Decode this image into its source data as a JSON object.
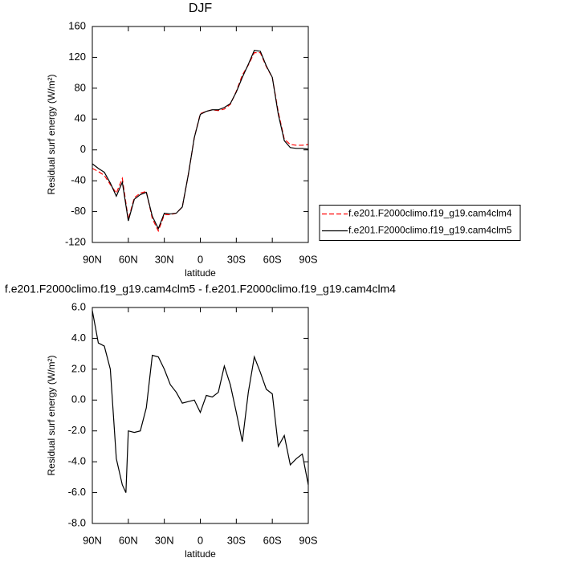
{
  "chart_data": [
    {
      "type": "line",
      "title": "DJF",
      "xlabel": "latitude",
      "ylabel": "Residual surf energy (W/m²)",
      "x": [
        90,
        85,
        80,
        75,
        70,
        65,
        60,
        55,
        50,
        45,
        40,
        35,
        30,
        25,
        20,
        15,
        10,
        5,
        0,
        -5,
        -10,
        -15,
        -20,
        -25,
        -30,
        -35,
        -40,
        -45,
        -50,
        -55,
        -60,
        -65,
        -70,
        -75,
        -80,
        -85,
        -90
      ],
      "series": [
        {
          "name": "f.e201.F2000climo.f19_g19.cam4clm4",
          "color": "#ff0000",
          "linestyle": "dashed",
          "values": [
            -24,
            -28,
            -33,
            -45,
            -56,
            -37,
            -90,
            -62,
            -56,
            -54,
            -89,
            -105,
            -84,
            -84,
            -82,
            -74,
            -32,
            16,
            47,
            50,
            52,
            51,
            53,
            59,
            76,
            97,
            110,
            126,
            126,
            108,
            94,
            49,
            14,
            7,
            6,
            6,
            7
          ]
        },
        {
          "name": "f.e201.F2000climo.f19_g19.cam4clm5",
          "color": "#000000",
          "linestyle": "solid",
          "values": [
            -18,
            -24,
            -29,
            -43,
            -60,
            -42,
            -92,
            -64,
            -58,
            -55,
            -86,
            -102,
            -82,
            -83,
            -82,
            -74,
            -32,
            16,
            46,
            50,
            52,
            52,
            55,
            60,
            75,
            94,
            111,
            129,
            128,
            109,
            94,
            46,
            12,
            3,
            2,
            2,
            1
          ]
        }
      ],
      "xlim": [
        90,
        -90
      ],
      "xticks": [
        {
          "value": 90,
          "label": "90N"
        },
        {
          "value": 60,
          "label": "60N"
        },
        {
          "value": 30,
          "label": "30N"
        },
        0,
        {
          "value": -30,
          "label": "30S"
        },
        {
          "value": -60,
          "label": "60S"
        },
        {
          "value": -90,
          "label": "90S"
        }
      ],
      "ylim": [
        -120,
        160
      ],
      "yticks": [
        -120,
        -80,
        -40,
        0,
        40,
        80,
        120,
        160
      ],
      "legend": "right"
    },
    {
      "type": "line",
      "title": "f.e201.F2000climo.f19_g19.cam4clm5 - f.e201.F2000climo.f19_g19.cam4clm4",
      "xlabel": "latitude",
      "ylabel": "Residual surf energy (W/m²)",
      "x": [
        90,
        85,
        80,
        75,
        70,
        65,
        62,
        60,
        55,
        50,
        45,
        40,
        35,
        30,
        25,
        20,
        15,
        10,
        5,
        0,
        -5,
        -10,
        -15,
        -20,
        -25,
        -30,
        -35,
        -40,
        -45,
        -50,
        -55,
        -60,
        -65,
        -70,
        -75,
        -80,
        -85,
        -90
      ],
      "values": [
        5.8,
        3.7,
        3.5,
        2.0,
        -3.8,
        -5.5,
        -6.0,
        -2.0,
        -2.1,
        -2.0,
        -0.5,
        2.9,
        2.8,
        2.0,
        1.0,
        0.5,
        -0.2,
        -0.1,
        0.0,
        -0.8,
        0.3,
        0.2,
        0.5,
        2.2,
        1.0,
        -0.8,
        -2.7,
        0.5,
        2.8,
        1.8,
        0.7,
        0.4,
        -3.0,
        -2.3,
        -4.2,
        -3.8,
        -3.5,
        -5.5
      ],
      "color": "#000000",
      "xlim": [
        90,
        -90
      ],
      "xticks": [
        {
          "value": 90,
          "label": "90N"
        },
        {
          "value": 60,
          "label": "60N"
        },
        {
          "value": 30,
          "label": "30N"
        },
        0,
        {
          "value": -30,
          "label": "30S"
        },
        {
          "value": -60,
          "label": "60S"
        },
        {
          "value": -90,
          "label": "90S"
        }
      ],
      "ylim": [
        -8,
        6
      ],
      "yticks": [
        {
          "value": -8,
          "label": "-8.0"
        },
        {
          "value": -6,
          "label": "-6.0"
        },
        {
          "value": -4,
          "label": "-4.0"
        },
        {
          "value": -2,
          "label": "-2.0"
        },
        {
          "value": 0,
          "label": "0.0"
        },
        {
          "value": 2,
          "label": "2.0"
        },
        {
          "value": 4,
          "label": "4.0"
        },
        {
          "value": 6,
          "label": "6.0"
        }
      ]
    }
  ]
}
